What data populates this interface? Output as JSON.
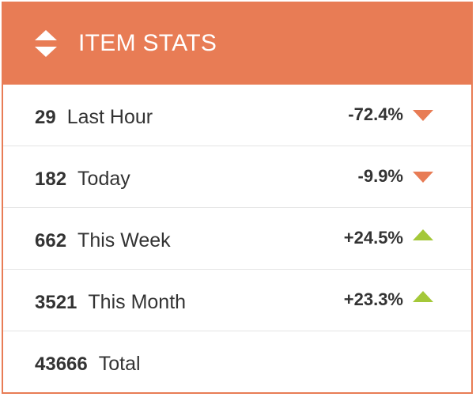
{
  "header": {
    "title": "ITEM STATS",
    "icon": "sort-icon",
    "background": "#e87c55"
  },
  "rows": [
    {
      "count": "29",
      "label": "Last Hour",
      "change": "-72.4%",
      "trend": "down"
    },
    {
      "count": "182",
      "label": "Today",
      "change": "-9.9%",
      "trend": "down"
    },
    {
      "count": "662",
      "label": "This Week",
      "change": "+24.5%",
      "trend": "up"
    },
    {
      "count": "3521",
      "label": "This Month",
      "change": "+23.3%",
      "trend": "up"
    },
    {
      "count": "43666",
      "label": "Total",
      "change": "",
      "trend": ""
    }
  ],
  "colors": {
    "down_arrow": "#e87c55",
    "up_arrow": "#a4c839",
    "text": "#333333"
  }
}
